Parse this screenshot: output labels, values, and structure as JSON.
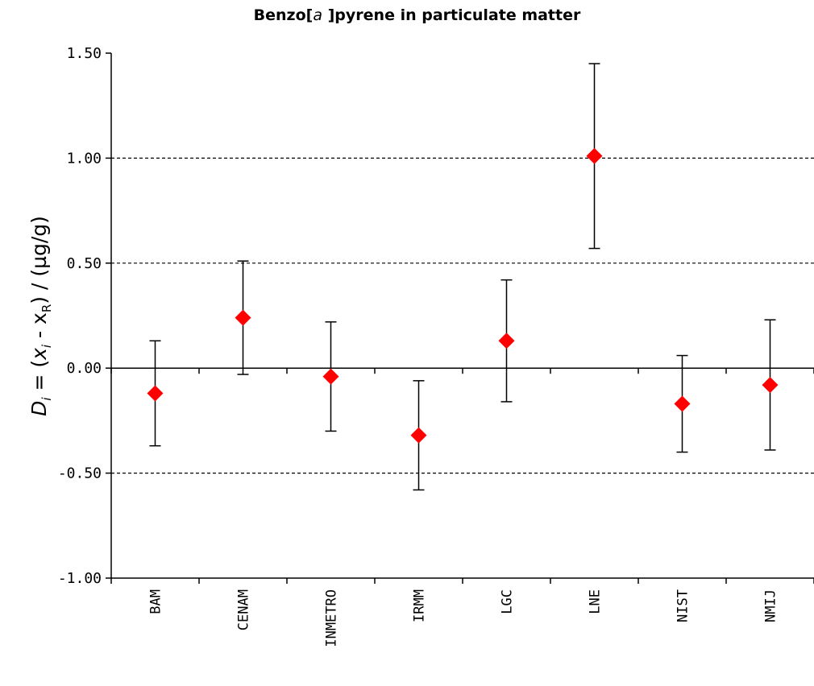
{
  "chart_data": {
    "type": "scatter",
    "title": {
      "prefix": "Benzo[",
      "italic": "a",
      "suffix": " ]pyrene in particulate matter"
    },
    "ylabel": {
      "d": "D",
      "d_sub": "i",
      "eq": " = (",
      "x": "x",
      "x_sub": "i",
      "minus": " - x",
      "r_sub": "R",
      "rest": ") / (µg/g)"
    },
    "ylim": [
      -1.0,
      1.5
    ],
    "yticks": [
      "1.50",
      "1.00",
      "0.50",
      "0.00",
      "-0.50",
      "-1.00"
    ],
    "ytick_values": [
      1.5,
      1.0,
      0.5,
      0.0,
      -0.5,
      -1.0
    ],
    "gridlines": [
      1.0,
      0.5,
      -0.5
    ],
    "categories": [
      "BAM",
      "CENAM",
      "INMETRO",
      "IRMM",
      "LGC",
      "LNE",
      "NIST",
      "NMIJ"
    ],
    "values": [
      -0.12,
      0.24,
      -0.04,
      -0.32,
      0.13,
      1.01,
      -0.17,
      -0.08
    ],
    "err_upper": [
      0.13,
      0.51,
      0.22,
      -0.06,
      0.42,
      1.45,
      0.06,
      0.23
    ],
    "err_lower": [
      -0.37,
      -0.03,
      -0.3,
      -0.58,
      -0.16,
      0.57,
      -0.4,
      -0.39
    ],
    "marker_color": "#ff0000",
    "grid_style": "dashed"
  }
}
